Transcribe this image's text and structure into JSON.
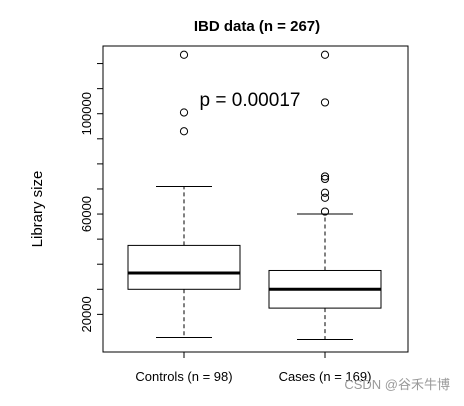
{
  "chart_data": {
    "type": "boxplot",
    "title": "IBD data (n = 267)",
    "ylabel": "Library size",
    "xlabel": "",
    "annotation": "p = 0.00017",
    "ylim": [
      5000,
      127000
    ],
    "yticks": [
      20000,
      60000,
      100000
    ],
    "ytick_labels": [
      "20000",
      "60000",
      "100000"
    ],
    "grid": false,
    "categories": [
      "Controls (n = 98)",
      "Cases (n = 169)"
    ],
    "series": [
      {
        "whisker_low": 10800,
        "q1": 30000,
        "median": 36500,
        "q3": 47500,
        "whisker_high": 71000,
        "outliers": [
          93000,
          100500,
          123500
        ]
      },
      {
        "whisker_low": 10000,
        "q1": 22500,
        "median": 30000,
        "q3": 37500,
        "whisker_high": 60000,
        "outliers": [
          61000,
          66500,
          68500,
          74000,
          75000,
          104500,
          123500
        ]
      }
    ]
  },
  "watermark": "CSDN @谷禾牛博",
  "colors": {
    "box": "#000000",
    "median": "#000000",
    "background": "#ffffff"
  }
}
